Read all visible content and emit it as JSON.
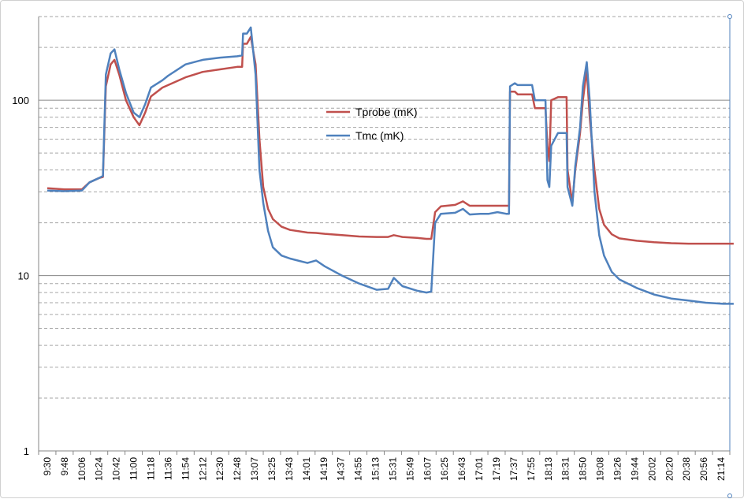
{
  "chart_data": {
    "type": "line",
    "title": "",
    "xlabel": "",
    "ylabel": "",
    "y_scale": "log",
    "ylim": [
      1,
      300
    ],
    "grid": true,
    "legend_position": "center-top",
    "y_ticks": [
      "1",
      "10",
      "100"
    ],
    "x_ticks": [
      "9:30",
      "9:48",
      "10:06",
      "10:24",
      "10:42",
      "11:00",
      "11:18",
      "11:36",
      "11:54",
      "12:12",
      "12:30",
      "12:48",
      "13:07",
      "13:25",
      "13:43",
      "14:01",
      "14:19",
      "14:37",
      "14:55",
      "15:13",
      "15:31",
      "15:49",
      "16:07",
      "16:25",
      "16:43",
      "17:01",
      "17:19",
      "17:37",
      "17:55",
      "18:13",
      "18:31",
      "18:50",
      "19:08",
      "19:26",
      "19:44",
      "20:02",
      "20:20",
      "20:38",
      "20:56",
      "21:14"
    ],
    "series": [
      {
        "name": "Tprobe (mK)",
        "color": "#c0504d",
        "points": [
          [
            "9:30",
            31.5
          ],
          [
            "9:48",
            31
          ],
          [
            "10:06",
            31
          ],
          [
            "10:14",
            34
          ],
          [
            "10:24",
            36
          ],
          [
            "10:28",
            36.5
          ],
          [
            "10:31",
            120
          ],
          [
            "10:36",
            160
          ],
          [
            "10:40",
            170
          ],
          [
            "10:45",
            140
          ],
          [
            "10:52",
            100
          ],
          [
            "11:00",
            80
          ],
          [
            "11:06",
            72
          ],
          [
            "11:12",
            85
          ],
          [
            "11:18",
            105
          ],
          [
            "11:30",
            118
          ],
          [
            "11:36",
            122
          ],
          [
            "11:54",
            135
          ],
          [
            "12:12",
            145
          ],
          [
            "12:30",
            150
          ],
          [
            "12:48",
            155
          ],
          [
            "12:53",
            155
          ],
          [
            "12:54",
            210
          ],
          [
            "12:58",
            210
          ],
          [
            "13:02",
            230
          ],
          [
            "13:07",
            160
          ],
          [
            "13:11",
            60
          ],
          [
            "13:15",
            32
          ],
          [
            "13:20",
            24
          ],
          [
            "13:25",
            21
          ],
          [
            "13:34",
            19
          ],
          [
            "13:43",
            18.2
          ],
          [
            "14:01",
            17.6
          ],
          [
            "14:10",
            17.5
          ],
          [
            "14:19",
            17.3
          ],
          [
            "14:37",
            17
          ],
          [
            "14:55",
            16.7
          ],
          [
            "15:13",
            16.6
          ],
          [
            "15:25",
            16.6
          ],
          [
            "15:31",
            17
          ],
          [
            "15:40",
            16.6
          ],
          [
            "15:55",
            16.4
          ],
          [
            "16:05",
            16.2
          ],
          [
            "16:10",
            16.2
          ],
          [
            "16:14",
            23
          ],
          [
            "16:20",
            24.8
          ],
          [
            "16:35",
            25.3
          ],
          [
            "16:43",
            26.5
          ],
          [
            "16:50",
            25
          ],
          [
            "17:01",
            25
          ],
          [
            "17:10",
            25
          ],
          [
            "17:19",
            25
          ],
          [
            "17:28",
            25
          ],
          [
            "17:31",
            25
          ],
          [
            "17:32",
            112
          ],
          [
            "17:37",
            112
          ],
          [
            "17:40",
            108
          ],
          [
            "17:55",
            108
          ],
          [
            "17:58",
            90
          ],
          [
            "18:04",
            90
          ],
          [
            "18:09",
            90
          ],
          [
            "18:11",
            55
          ],
          [
            "18:13",
            45
          ],
          [
            "18:15",
            100
          ],
          [
            "18:22",
            104
          ],
          [
            "18:31",
            104
          ],
          [
            "18:32",
            40
          ],
          [
            "18:37",
            26
          ],
          [
            "18:40",
            40
          ],
          [
            "18:45",
            65
          ],
          [
            "18:48",
            100
          ],
          [
            "18:52",
            150
          ],
          [
            "18:55",
            80
          ],
          [
            "19:00",
            40
          ],
          [
            "19:05",
            24
          ],
          [
            "19:10",
            19.5
          ],
          [
            "19:18",
            17.2
          ],
          [
            "19:26",
            16.3
          ],
          [
            "19:44",
            15.8
          ],
          [
            "20:02",
            15.5
          ],
          [
            "20:20",
            15.3
          ],
          [
            "20:38",
            15.2
          ],
          [
            "20:56",
            15.2
          ],
          [
            "21:14",
            15.2
          ],
          [
            "21:25",
            15.2
          ]
        ]
      },
      {
        "name": "Tmc (mK)",
        "color": "#4f81bd",
        "points": [
          [
            "9:30",
            30.5
          ],
          [
            "9:48",
            30.3
          ],
          [
            "10:06",
            30.5
          ],
          [
            "10:14",
            34
          ],
          [
            "10:24",
            36
          ],
          [
            "10:28",
            37
          ],
          [
            "10:31",
            140
          ],
          [
            "10:36",
            185
          ],
          [
            "10:40",
            195
          ],
          [
            "10:45",
            150
          ],
          [
            "10:52",
            110
          ],
          [
            "11:00",
            85
          ],
          [
            "11:06",
            80
          ],
          [
            "11:12",
            95
          ],
          [
            "11:18",
            118
          ],
          [
            "11:30",
            130
          ],
          [
            "11:36",
            138
          ],
          [
            "11:54",
            160
          ],
          [
            "12:12",
            170
          ],
          [
            "12:30",
            175
          ],
          [
            "12:48",
            178
          ],
          [
            "12:53",
            180
          ],
          [
            "12:54",
            240
          ],
          [
            "12:58",
            240
          ],
          [
            "13:02",
            260
          ],
          [
            "13:07",
            140
          ],
          [
            "13:11",
            40
          ],
          [
            "13:15",
            26
          ],
          [
            "13:20",
            18
          ],
          [
            "13:25",
            14.5
          ],
          [
            "13:34",
            13
          ],
          [
            "13:43",
            12.5
          ],
          [
            "14:01",
            11.8
          ],
          [
            "14:10",
            12.2
          ],
          [
            "14:19",
            11.3
          ],
          [
            "14:37",
            10
          ],
          [
            "14:55",
            9
          ],
          [
            "15:13",
            8.3
          ],
          [
            "15:25",
            8.4
          ],
          [
            "15:31",
            9.7
          ],
          [
            "15:40",
            8.7
          ],
          [
            "15:55",
            8.2
          ],
          [
            "16:05",
            8
          ],
          [
            "16:10",
            8.1
          ],
          [
            "16:14",
            20
          ],
          [
            "16:20",
            22.5
          ],
          [
            "16:35",
            22.8
          ],
          [
            "16:43",
            24
          ],
          [
            "16:50",
            22.3
          ],
          [
            "17:01",
            22.5
          ],
          [
            "17:10",
            22.5
          ],
          [
            "17:19",
            23
          ],
          [
            "17:28",
            22.5
          ],
          [
            "17:31",
            22.5
          ],
          [
            "17:32",
            120
          ],
          [
            "17:37",
            125
          ],
          [
            "17:40",
            122
          ],
          [
            "17:55",
            122
          ],
          [
            "17:58",
            100
          ],
          [
            "18:04",
            100
          ],
          [
            "18:09",
            100
          ],
          [
            "18:11",
            35
          ],
          [
            "18:13",
            32
          ],
          [
            "18:15",
            55
          ],
          [
            "18:22",
            65
          ],
          [
            "18:31",
            65
          ],
          [
            "18:32",
            32
          ],
          [
            "18:37",
            25
          ],
          [
            "18:40",
            42
          ],
          [
            "18:45",
            70
          ],
          [
            "18:48",
            120
          ],
          [
            "18:52",
            165
          ],
          [
            "18:55",
            100
          ],
          [
            "19:00",
            30
          ],
          [
            "19:05",
            17
          ],
          [
            "19:10",
            13
          ],
          [
            "19:18",
            10.5
          ],
          [
            "19:26",
            9.5
          ],
          [
            "19:44",
            8.5
          ],
          [
            "20:02",
            7.8
          ],
          [
            "20:20",
            7.4
          ],
          [
            "20:38",
            7.2
          ],
          [
            "20:56",
            7.0
          ],
          [
            "21:14",
            6.9
          ],
          [
            "21:25",
            6.9
          ]
        ]
      }
    ]
  }
}
